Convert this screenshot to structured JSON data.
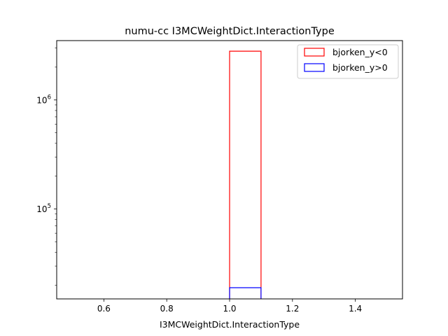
{
  "chart_data": {
    "type": "histogram",
    "title": "numu-cc I3MCWeightDict.InteractionType",
    "xlabel": "I3MCWeightDict.InteractionType",
    "ylabel": "",
    "xlim": [
      0.45,
      1.55
    ],
    "ylim": [
      15000,
      3500000
    ],
    "yscale": "log",
    "grid": false,
    "legend_position": "top-right",
    "xticks": [
      {
        "value": 0.6,
        "label": "0.6"
      },
      {
        "value": 0.8,
        "label": "0.8"
      },
      {
        "value": 1.0,
        "label": "1.0"
      },
      {
        "value": 1.2,
        "label": "1.2"
      },
      {
        "value": 1.4,
        "label": "1.4"
      }
    ],
    "yticks_major": [
      {
        "value": 100000,
        "base": "10",
        "exp": "5"
      },
      {
        "value": 1000000,
        "base": "10",
        "exp": "6"
      }
    ],
    "yticks_minor": [
      20000,
      30000,
      40000,
      50000,
      60000,
      70000,
      80000,
      90000,
      200000,
      300000,
      400000,
      500000,
      600000,
      700000,
      800000,
      900000,
      2000000,
      3000000
    ],
    "series": [
      {
        "name": "bjorken_y<0",
        "color": "#ff0000",
        "bin_start": 1.0,
        "bin_end": 1.1,
        "value": 2800000
      },
      {
        "name": "bjorken_y>0",
        "color": "#0000ff",
        "bin_start": 1.0,
        "bin_end": 1.1,
        "value": 19000
      }
    ]
  }
}
